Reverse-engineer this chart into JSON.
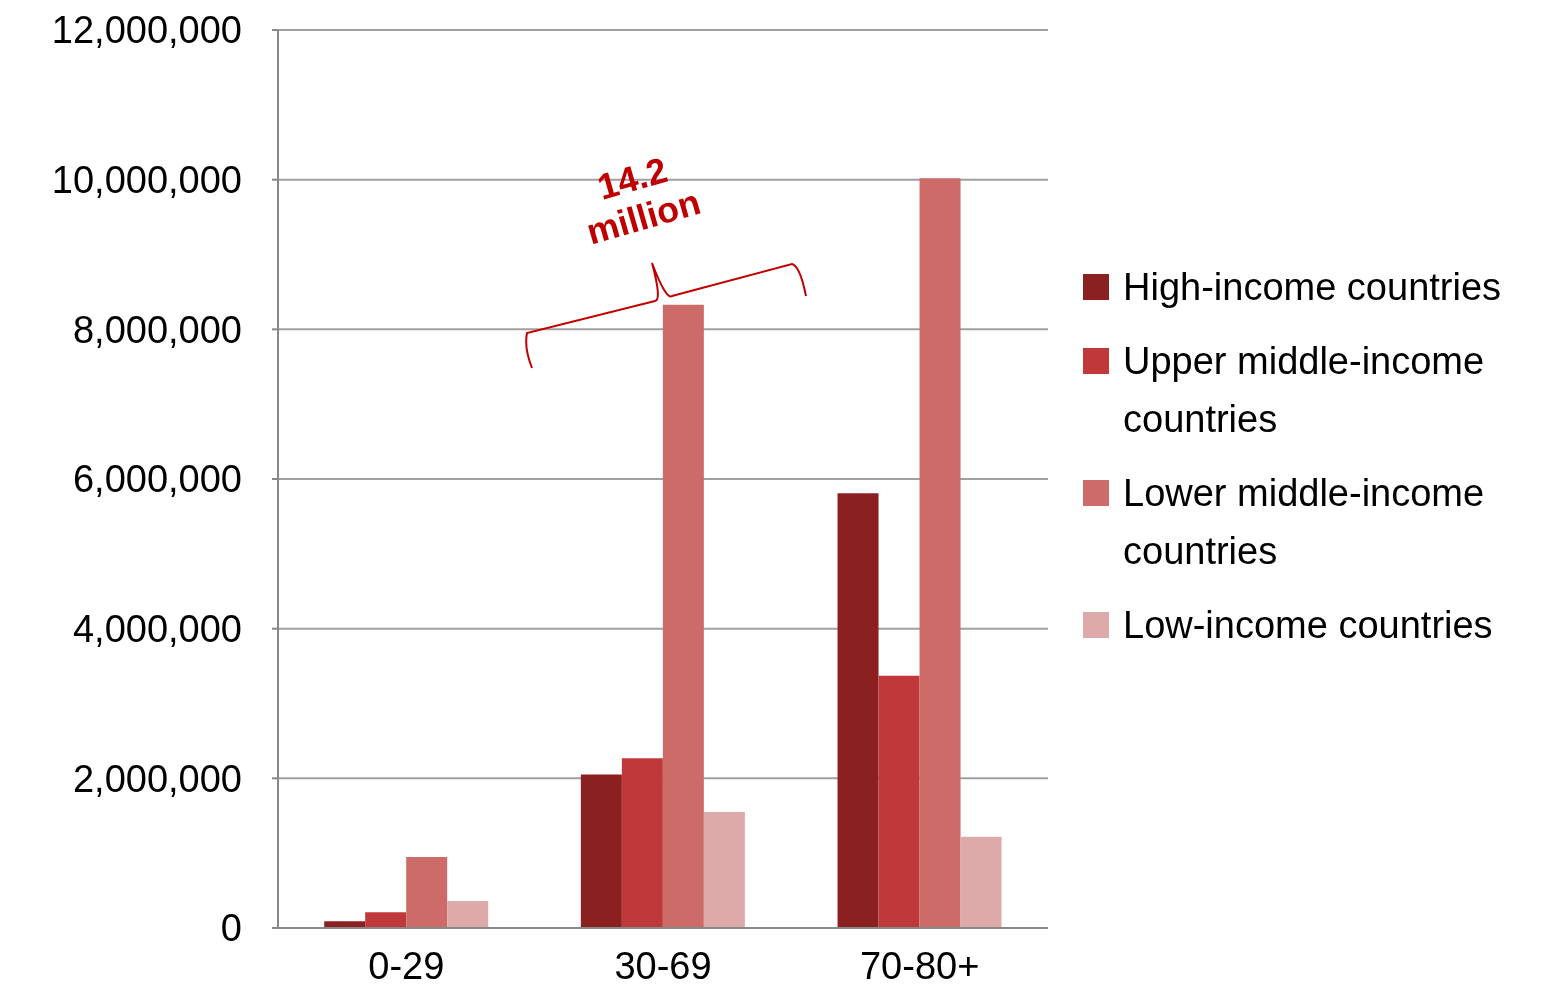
{
  "chart_data": {
    "type": "bar",
    "categories": [
      "0-29",
      "30-69",
      "70-80+"
    ],
    "series": [
      {
        "name": "High-income countries",
        "color": "#8b2020",
        "values": [
          90000,
          2050000,
          5810000
        ]
      },
      {
        "name": "Upper middle-income countries",
        "color": "#c0393a",
        "values": [
          210000,
          2270000,
          3370000
        ]
      },
      {
        "name": "Lower middle-income countries",
        "color": "#cd6b68",
        "values": [
          950000,
          8330000,
          10020000
        ]
      },
      {
        "name": "Low-income countries",
        "color": "#ddaaa9",
        "values": [
          360000,
          1550000,
          1220000
        ]
      }
    ],
    "ylim": [
      0,
      12000000
    ],
    "yticks": [
      0,
      {
        "value": 2000000,
        "label": "2,000,000"
      },
      {
        "value": 4000000,
        "label": "4,000,000"
      },
      {
        "value": 6000000,
        "label": "6,000,000"
      },
      {
        "value": 8000000,
        "label": "8,000,000"
      },
      {
        "value": 10000000,
        "label": "10,000,000"
      },
      {
        "value": 12000000,
        "label": "12,000,000"
      }
    ],
    "grid": "y",
    "legend": "right",
    "annotations": [
      "14.2 million"
    ]
  }
}
